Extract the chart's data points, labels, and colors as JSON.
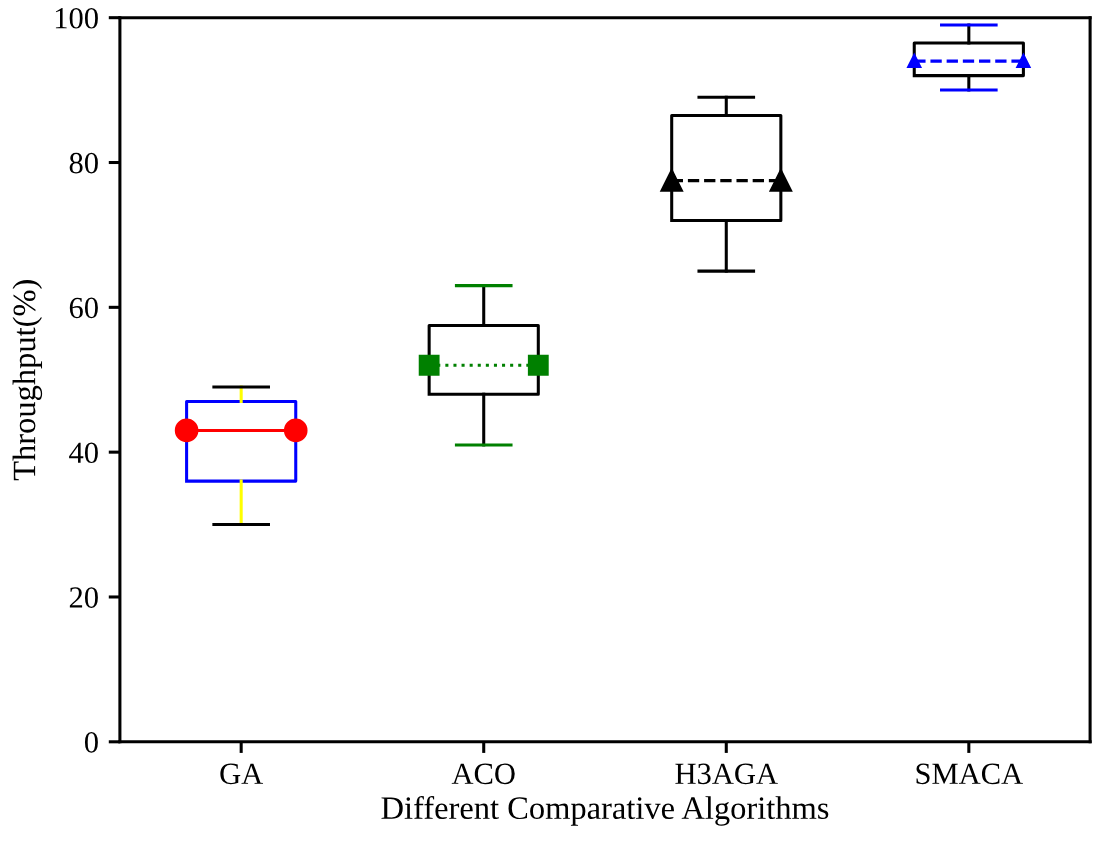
{
  "chart_data": {
    "type": "box",
    "xlabel": "Different Comparative Algorithms",
    "ylabel": "Throughput(%)",
    "categories": [
      "GA",
      "ACO",
      "H3AGA",
      "SMACA"
    ],
    "ylim": [
      0,
      100
    ],
    "yticks": [
      0,
      20,
      40,
      60,
      80,
      100
    ],
    "grid": false,
    "series": [
      {
        "color": "#0000ff",
        "marker": "circle",
        "line_style": "solid",
        "boxes": [
          {
            "low": 30,
            "q1": 36,
            "median": 43,
            "q3": 47,
            "high": 49
          },
          null,
          null,
          null
        ]
      },
      {
        "color": "#000000",
        "marker": "square",
        "line_style": "dotted",
        "boxes": [
          null,
          {
            "low": 41,
            "q1": 48,
            "median": 52,
            "q3": 57.5,
            "high": 63
          },
          null,
          null
        ]
      },
      {
        "color": "#000000",
        "marker": "triangle",
        "line_style": "dashed",
        "boxes": [
          null,
          null,
          {
            "low": 65,
            "q1": 72,
            "median": 77.5,
            "q3": 86.5,
            "high": 89
          },
          null
        ]
      },
      {
        "color": "#000000",
        "marker": "triangle",
        "line_style": "dashed",
        "boxes": [
          null,
          null,
          null,
          {
            "low": 90,
            "q1": 92,
            "median": 94,
            "q3": 96.5,
            "high": 99
          }
        ]
      }
    ]
  }
}
